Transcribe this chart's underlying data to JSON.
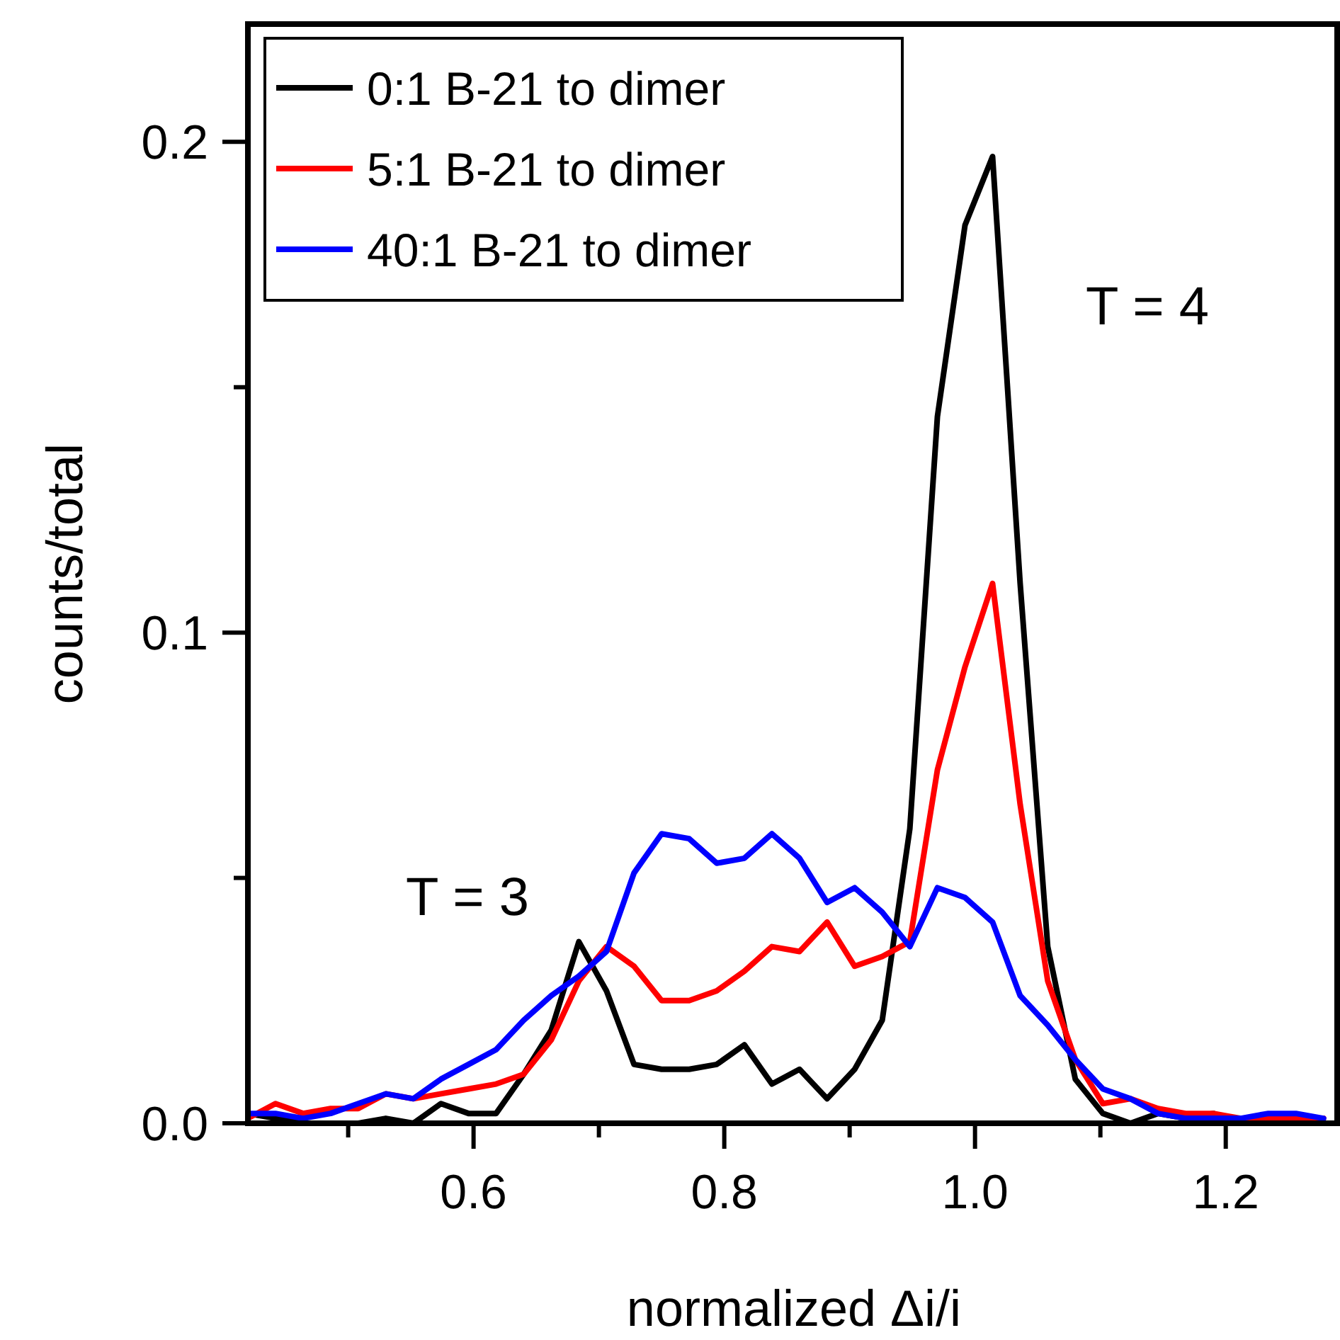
{
  "chart_data": {
    "type": "line",
    "xlabel": "normalized Δi/i",
    "ylabel": "counts/total",
    "x": [
      0.42,
      0.442,
      0.464,
      0.486,
      0.508,
      0.53,
      0.552,
      0.574,
      0.596,
      0.618,
      0.64,
      0.662,
      0.684,
      0.706,
      0.728,
      0.75,
      0.772,
      0.794,
      0.816,
      0.838,
      0.86,
      0.882,
      0.904,
      0.926,
      0.948,
      0.97,
      0.992,
      1.014,
      1.036,
      1.058,
      1.08,
      1.102,
      1.124,
      1.146,
      1.168,
      1.19,
      1.212,
      1.234,
      1.256,
      1.278
    ],
    "series": [
      {
        "name": "0:1 B-21 to dimer",
        "color": "#000000",
        "values": [
          0.002,
          0.001,
          0.0,
          0.0,
          0.0,
          0.001,
          0.0,
          0.004,
          0.002,
          0.002,
          0.01,
          0.019,
          0.037,
          0.027,
          0.012,
          0.011,
          0.011,
          0.012,
          0.016,
          0.008,
          0.011,
          0.005,
          0.011,
          0.021,
          0.06,
          0.144,
          0.183,
          0.197,
          0.11,
          0.036,
          0.009,
          0.002,
          0.0,
          0.002,
          0.001,
          0.002,
          0.0,
          0.0,
          0.0,
          0.0
        ]
      },
      {
        "name": "5:1 B-21 to dimer",
        "color": "#ff0000",
        "values": [
          0.001,
          0.004,
          0.002,
          0.003,
          0.003,
          0.006,
          0.005,
          0.006,
          0.007,
          0.008,
          0.01,
          0.017,
          0.029,
          0.036,
          0.032,
          0.025,
          0.025,
          0.027,
          0.031,
          0.036,
          0.035,
          0.041,
          0.032,
          0.034,
          0.037,
          0.072,
          0.093,
          0.11,
          0.065,
          0.029,
          0.013,
          0.004,
          0.005,
          0.003,
          0.002,
          0.002,
          0.001,
          0.001,
          0.001,
          0.001
        ]
      },
      {
        "name": "40:1 B-21 to dimer",
        "color": "#0000ff",
        "values": [
          0.002,
          0.002,
          0.001,
          0.002,
          0.004,
          0.006,
          0.005,
          0.009,
          0.012,
          0.015,
          0.021,
          0.026,
          0.03,
          0.035,
          0.051,
          0.059,
          0.058,
          0.053,
          0.054,
          0.059,
          0.054,
          0.045,
          0.048,
          0.043,
          0.036,
          0.048,
          0.046,
          0.041,
          0.026,
          0.02,
          0.013,
          0.007,
          0.005,
          0.002,
          0.001,
          0.001,
          0.001,
          0.002,
          0.002,
          0.001
        ]
      }
    ],
    "xlim": [
      0.42,
      1.29
    ],
    "ylim": [
      0,
      0.224
    ],
    "xticks": [
      {
        "value": 0.5,
        "label": null
      },
      0.6,
      {
        "value": 0.7,
        "label": null
      },
      0.8,
      {
        "value": 0.9,
        "label": null
      },
      {
        "value": 1.0,
        "label": "1.0"
      },
      {
        "value": 1.1,
        "label": null
      },
      1.2
    ],
    "yticks": [
      {
        "value": 0,
        "label": "0.0"
      },
      {
        "value": 0.05,
        "label": null
      },
      0.1,
      {
        "value": 0.15,
        "label": null
      },
      0.2
    ],
    "annotations": [
      "T = 3",
      "T = 4"
    ],
    "legend": "top left",
    "grid": false,
    "marker": "none",
    "line_style": "solid"
  }
}
